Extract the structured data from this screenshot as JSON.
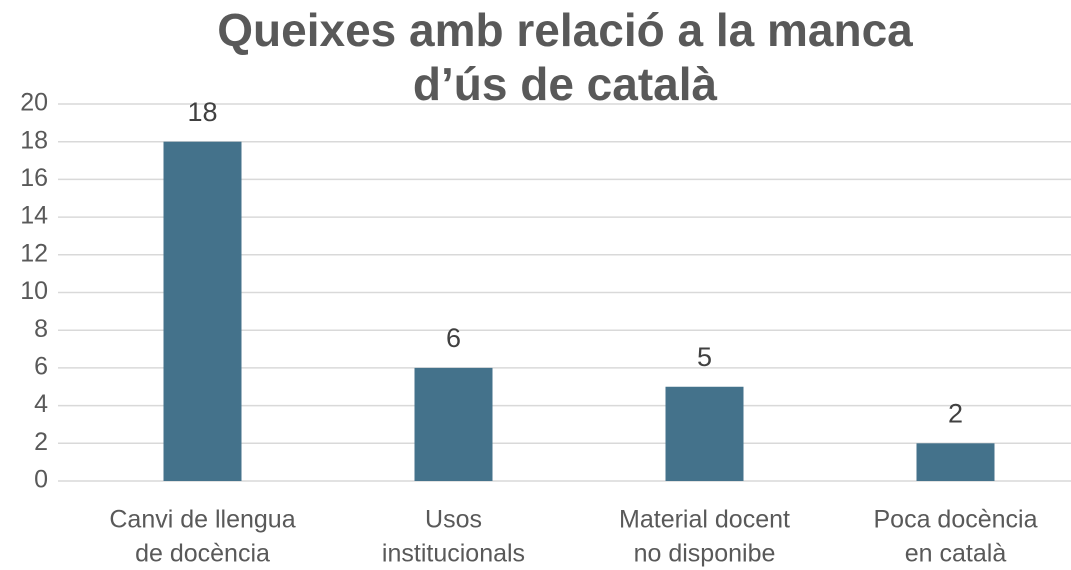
{
  "chart_data": {
    "type": "bar",
    "title": [
      "Queixes amb relació a la manca",
      "d’ús de català"
    ],
    "categories": [
      [
        "Canvi de llengua",
        "de docència"
      ],
      [
        "Usos",
        "institucionals"
      ],
      [
        "Material docent",
        "no disponibe"
      ],
      [
        "Poca docència",
        "en català"
      ]
    ],
    "values": [
      18,
      6,
      5,
      2
    ],
    "color": "#44728b",
    "ylim": [
      0,
      20
    ],
    "yticks": [
      0,
      2,
      4,
      6,
      8,
      10,
      12,
      14,
      16,
      18,
      20
    ],
    "grid": true
  }
}
